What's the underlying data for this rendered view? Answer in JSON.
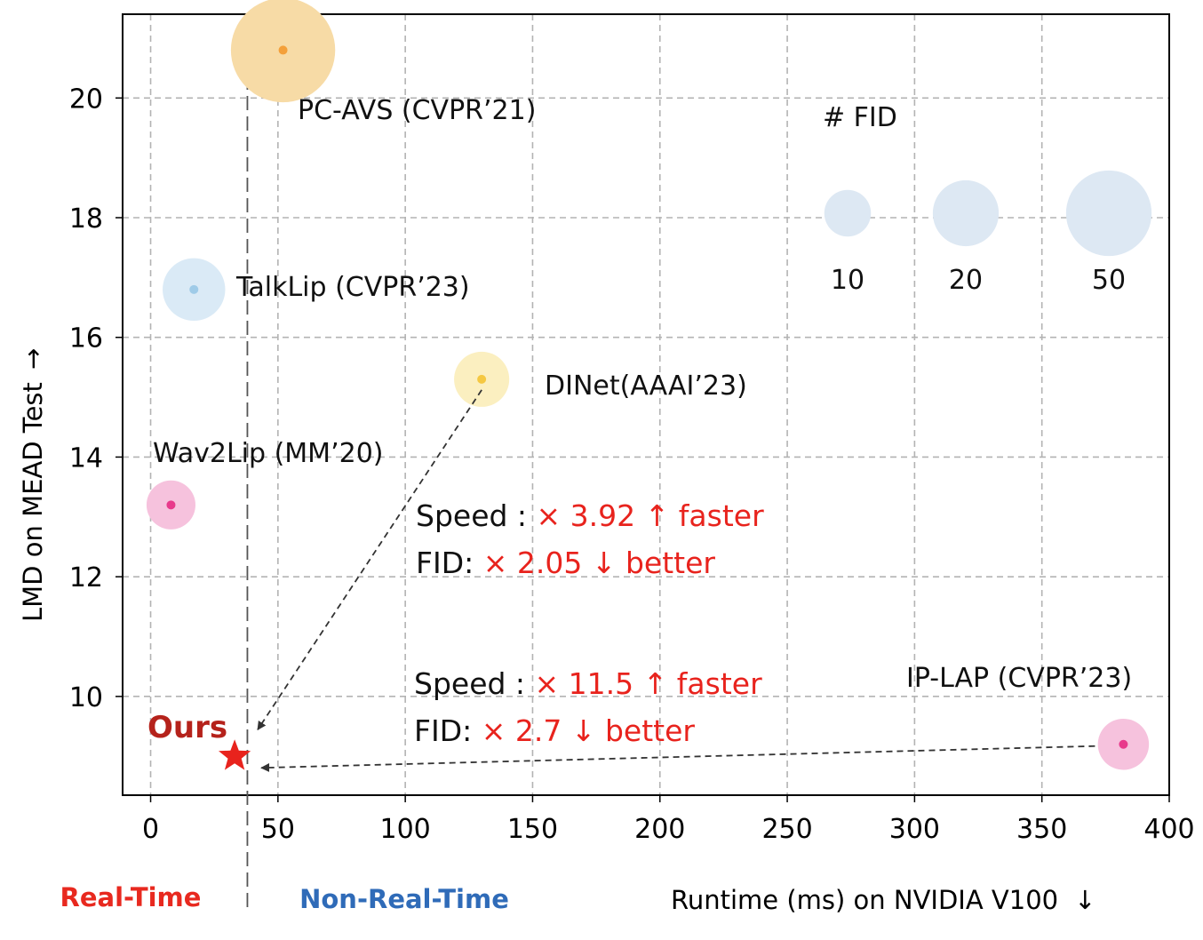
{
  "chart_data": {
    "type": "scatter",
    "xlabel": "Runtime (ms) on NVIDIA V100",
    "xlabel_arrow": "↓",
    "ylabel": "LMD on MEAD Test",
    "ylabel_arrow": "→",
    "xlim": [
      -11,
      400
    ],
    "ylim": [
      8.35,
      21.4
    ],
    "xticks": [
      0,
      50,
      100,
      150,
      200,
      250,
      300,
      350,
      400
    ],
    "yticks": [
      10,
      12,
      14,
      16,
      18,
      20
    ],
    "grid": true,
    "points": [
      {
        "label": "PC-AVS (CVPR’21)",
        "x": 52,
        "y": 20.8,
        "size": 50,
        "color": "#f7dba6",
        "dot": "#f4a03a"
      },
      {
        "label": "TalkLip (CVPR’23)",
        "x": 17,
        "y": 16.8,
        "size": 18,
        "color": "#daeaf6",
        "dot": "#9fcbe8"
      },
      {
        "label": "DINet(AAAI’23)",
        "x": 130,
        "y": 15.3,
        "size": 14,
        "color": "#fbefc0",
        "dot": "#f5c842"
      },
      {
        "label": "Wav2Lip (MM’20)",
        "x": 8,
        "y": 13.2,
        "size": 11,
        "color": "#f6c2dd",
        "dot": "#e83a8c"
      },
      {
        "label": "IP-LAP (CVPR’23)",
        "x": 382,
        "y": 9.2,
        "size": 12,
        "color": "#f6c2dd",
        "dot": "#e83a8c"
      },
      {
        "label": "Ours",
        "x": 33,
        "y": 9.0,
        "marker": "star",
        "color": "#e8231d"
      }
    ],
    "legend": {
      "title": "# FID",
      "sizes": [
        10,
        20,
        50
      ],
      "labels": [
        "10",
        "20",
        "50"
      ],
      "color": "#dde8f3"
    },
    "annotations": [
      {
        "prefix": "Speed : ",
        "value": "× 3.92 ↑ faster"
      },
      {
        "prefix": "FID: ",
        "value": "× 2.05 ↓ better"
      },
      {
        "prefix": "Speed : ",
        "value": "× 11.5 ↑ faster"
      },
      {
        "prefix": "FID: ",
        "value": "× 2.7 ↓ better"
      }
    ],
    "threshold_x": 38,
    "regions": {
      "left": "Real-Time",
      "right": "Non-Real-Time"
    }
  }
}
